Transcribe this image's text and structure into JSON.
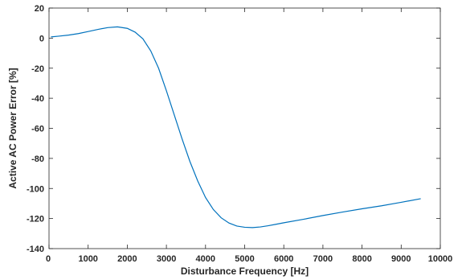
{
  "chart_data": {
    "type": "line",
    "title": "",
    "xlabel": "Disturbance Frequency [Hz]",
    "ylabel": "Active AC Power Error [%]",
    "xlim": [
      0,
      10000
    ],
    "ylim": [
      -140,
      20
    ],
    "xticks": [
      "0",
      "1000",
      "2000",
      "3000",
      "4000",
      "5000",
      "6000",
      "7000",
      "8000",
      "9000",
      "10000"
    ],
    "yticks": [
      "20",
      "0",
      "-20",
      "-40",
      "-60",
      "-80",
      "-100",
      "-120",
      "-140"
    ],
    "grid": false,
    "box": true,
    "series_color": "#0072BD",
    "series": [
      {
        "x": [
          50,
          250,
          500,
          750,
          1000,
          1250,
          1500,
          1750,
          2000,
          2200,
          2400,
          2600,
          2800,
          3000,
          3200,
          3400,
          3600,
          3800,
          4000,
          4200,
          4400,
          4600,
          4800,
          5000,
          5200,
          5400,
          5600,
          5800,
          6000,
          6500,
          7000,
          7500,
          8000,
          8500,
          9000,
          9500
        ],
        "y": [
          0.8,
          1.3,
          2.0,
          3.0,
          4.4,
          5.8,
          7.0,
          7.5,
          6.5,
          4.0,
          -0.5,
          -8.5,
          -20,
          -35,
          -51,
          -67,
          -82,
          -95,
          -106,
          -114,
          -119.5,
          -123,
          -125,
          -125.8,
          -126,
          -125.6,
          -124.8,
          -123.8,
          -122.8,
          -120.5,
          -118,
          -115.7,
          -113.5,
          -111.5,
          -109.2,
          -106.8
        ]
      }
    ]
  }
}
